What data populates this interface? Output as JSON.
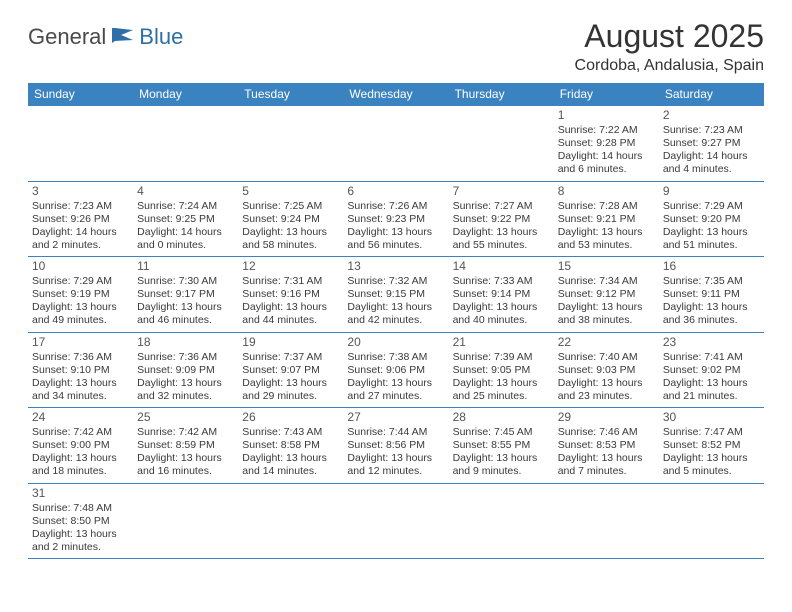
{
  "logo": {
    "text1": "General",
    "text2": "Blue"
  },
  "title": "August 2025",
  "subtitle": "Cordoba, Andalusia, Spain",
  "colors": {
    "header_bg": "#3b83c0",
    "header_fg": "#ffffff",
    "border": "#3b83c0",
    "text": "#3a3a3a",
    "logo_dark": "#4a4a4a",
    "logo_blue": "#2f6fa7"
  },
  "weekdays": [
    "Sunday",
    "Monday",
    "Tuesday",
    "Wednesday",
    "Thursday",
    "Friday",
    "Saturday"
  ],
  "days": [
    {
      "n": 1,
      "sr": "7:22 AM",
      "ss": "9:28 PM",
      "d": "14 hours and 6 minutes."
    },
    {
      "n": 2,
      "sr": "7:23 AM",
      "ss": "9:27 PM",
      "d": "14 hours and 4 minutes."
    },
    {
      "n": 3,
      "sr": "7:23 AM",
      "ss": "9:26 PM",
      "d": "14 hours and 2 minutes."
    },
    {
      "n": 4,
      "sr": "7:24 AM",
      "ss": "9:25 PM",
      "d": "14 hours and 0 minutes."
    },
    {
      "n": 5,
      "sr": "7:25 AM",
      "ss": "9:24 PM",
      "d": "13 hours and 58 minutes."
    },
    {
      "n": 6,
      "sr": "7:26 AM",
      "ss": "9:23 PM",
      "d": "13 hours and 56 minutes."
    },
    {
      "n": 7,
      "sr": "7:27 AM",
      "ss": "9:22 PM",
      "d": "13 hours and 55 minutes."
    },
    {
      "n": 8,
      "sr": "7:28 AM",
      "ss": "9:21 PM",
      "d": "13 hours and 53 minutes."
    },
    {
      "n": 9,
      "sr": "7:29 AM",
      "ss": "9:20 PM",
      "d": "13 hours and 51 minutes."
    },
    {
      "n": 10,
      "sr": "7:29 AM",
      "ss": "9:19 PM",
      "d": "13 hours and 49 minutes."
    },
    {
      "n": 11,
      "sr": "7:30 AM",
      "ss": "9:17 PM",
      "d": "13 hours and 46 minutes."
    },
    {
      "n": 12,
      "sr": "7:31 AM",
      "ss": "9:16 PM",
      "d": "13 hours and 44 minutes."
    },
    {
      "n": 13,
      "sr": "7:32 AM",
      "ss": "9:15 PM",
      "d": "13 hours and 42 minutes."
    },
    {
      "n": 14,
      "sr": "7:33 AM",
      "ss": "9:14 PM",
      "d": "13 hours and 40 minutes."
    },
    {
      "n": 15,
      "sr": "7:34 AM",
      "ss": "9:12 PM",
      "d": "13 hours and 38 minutes."
    },
    {
      "n": 16,
      "sr": "7:35 AM",
      "ss": "9:11 PM",
      "d": "13 hours and 36 minutes."
    },
    {
      "n": 17,
      "sr": "7:36 AM",
      "ss": "9:10 PM",
      "d": "13 hours and 34 minutes."
    },
    {
      "n": 18,
      "sr": "7:36 AM",
      "ss": "9:09 PM",
      "d": "13 hours and 32 minutes."
    },
    {
      "n": 19,
      "sr": "7:37 AM",
      "ss": "9:07 PM",
      "d": "13 hours and 29 minutes."
    },
    {
      "n": 20,
      "sr": "7:38 AM",
      "ss": "9:06 PM",
      "d": "13 hours and 27 minutes."
    },
    {
      "n": 21,
      "sr": "7:39 AM",
      "ss": "9:05 PM",
      "d": "13 hours and 25 minutes."
    },
    {
      "n": 22,
      "sr": "7:40 AM",
      "ss": "9:03 PM",
      "d": "13 hours and 23 minutes."
    },
    {
      "n": 23,
      "sr": "7:41 AM",
      "ss": "9:02 PM",
      "d": "13 hours and 21 minutes."
    },
    {
      "n": 24,
      "sr": "7:42 AM",
      "ss": "9:00 PM",
      "d": "13 hours and 18 minutes."
    },
    {
      "n": 25,
      "sr": "7:42 AM",
      "ss": "8:59 PM",
      "d": "13 hours and 16 minutes."
    },
    {
      "n": 26,
      "sr": "7:43 AM",
      "ss": "8:58 PM",
      "d": "13 hours and 14 minutes."
    },
    {
      "n": 27,
      "sr": "7:44 AM",
      "ss": "8:56 PM",
      "d": "13 hours and 12 minutes."
    },
    {
      "n": 28,
      "sr": "7:45 AM",
      "ss": "8:55 PM",
      "d": "13 hours and 9 minutes."
    },
    {
      "n": 29,
      "sr": "7:46 AM",
      "ss": "8:53 PM",
      "d": "13 hours and 7 minutes."
    },
    {
      "n": 30,
      "sr": "7:47 AM",
      "ss": "8:52 PM",
      "d": "13 hours and 5 minutes."
    },
    {
      "n": 31,
      "sr": "7:48 AM",
      "ss": "8:50 PM",
      "d": "13 hours and 2 minutes."
    }
  ],
  "grid": [
    [
      null,
      null,
      null,
      null,
      null,
      0,
      1
    ],
    [
      2,
      3,
      4,
      5,
      6,
      7,
      8
    ],
    [
      9,
      10,
      11,
      12,
      13,
      14,
      15
    ],
    [
      16,
      17,
      18,
      19,
      20,
      21,
      22
    ],
    [
      23,
      24,
      25,
      26,
      27,
      28,
      29
    ],
    [
      30,
      null,
      null,
      null,
      null,
      null,
      null
    ]
  ],
  "labels": {
    "sunrise": "Sunrise:",
    "sunset": "Sunset:",
    "daylight": "Daylight:"
  }
}
